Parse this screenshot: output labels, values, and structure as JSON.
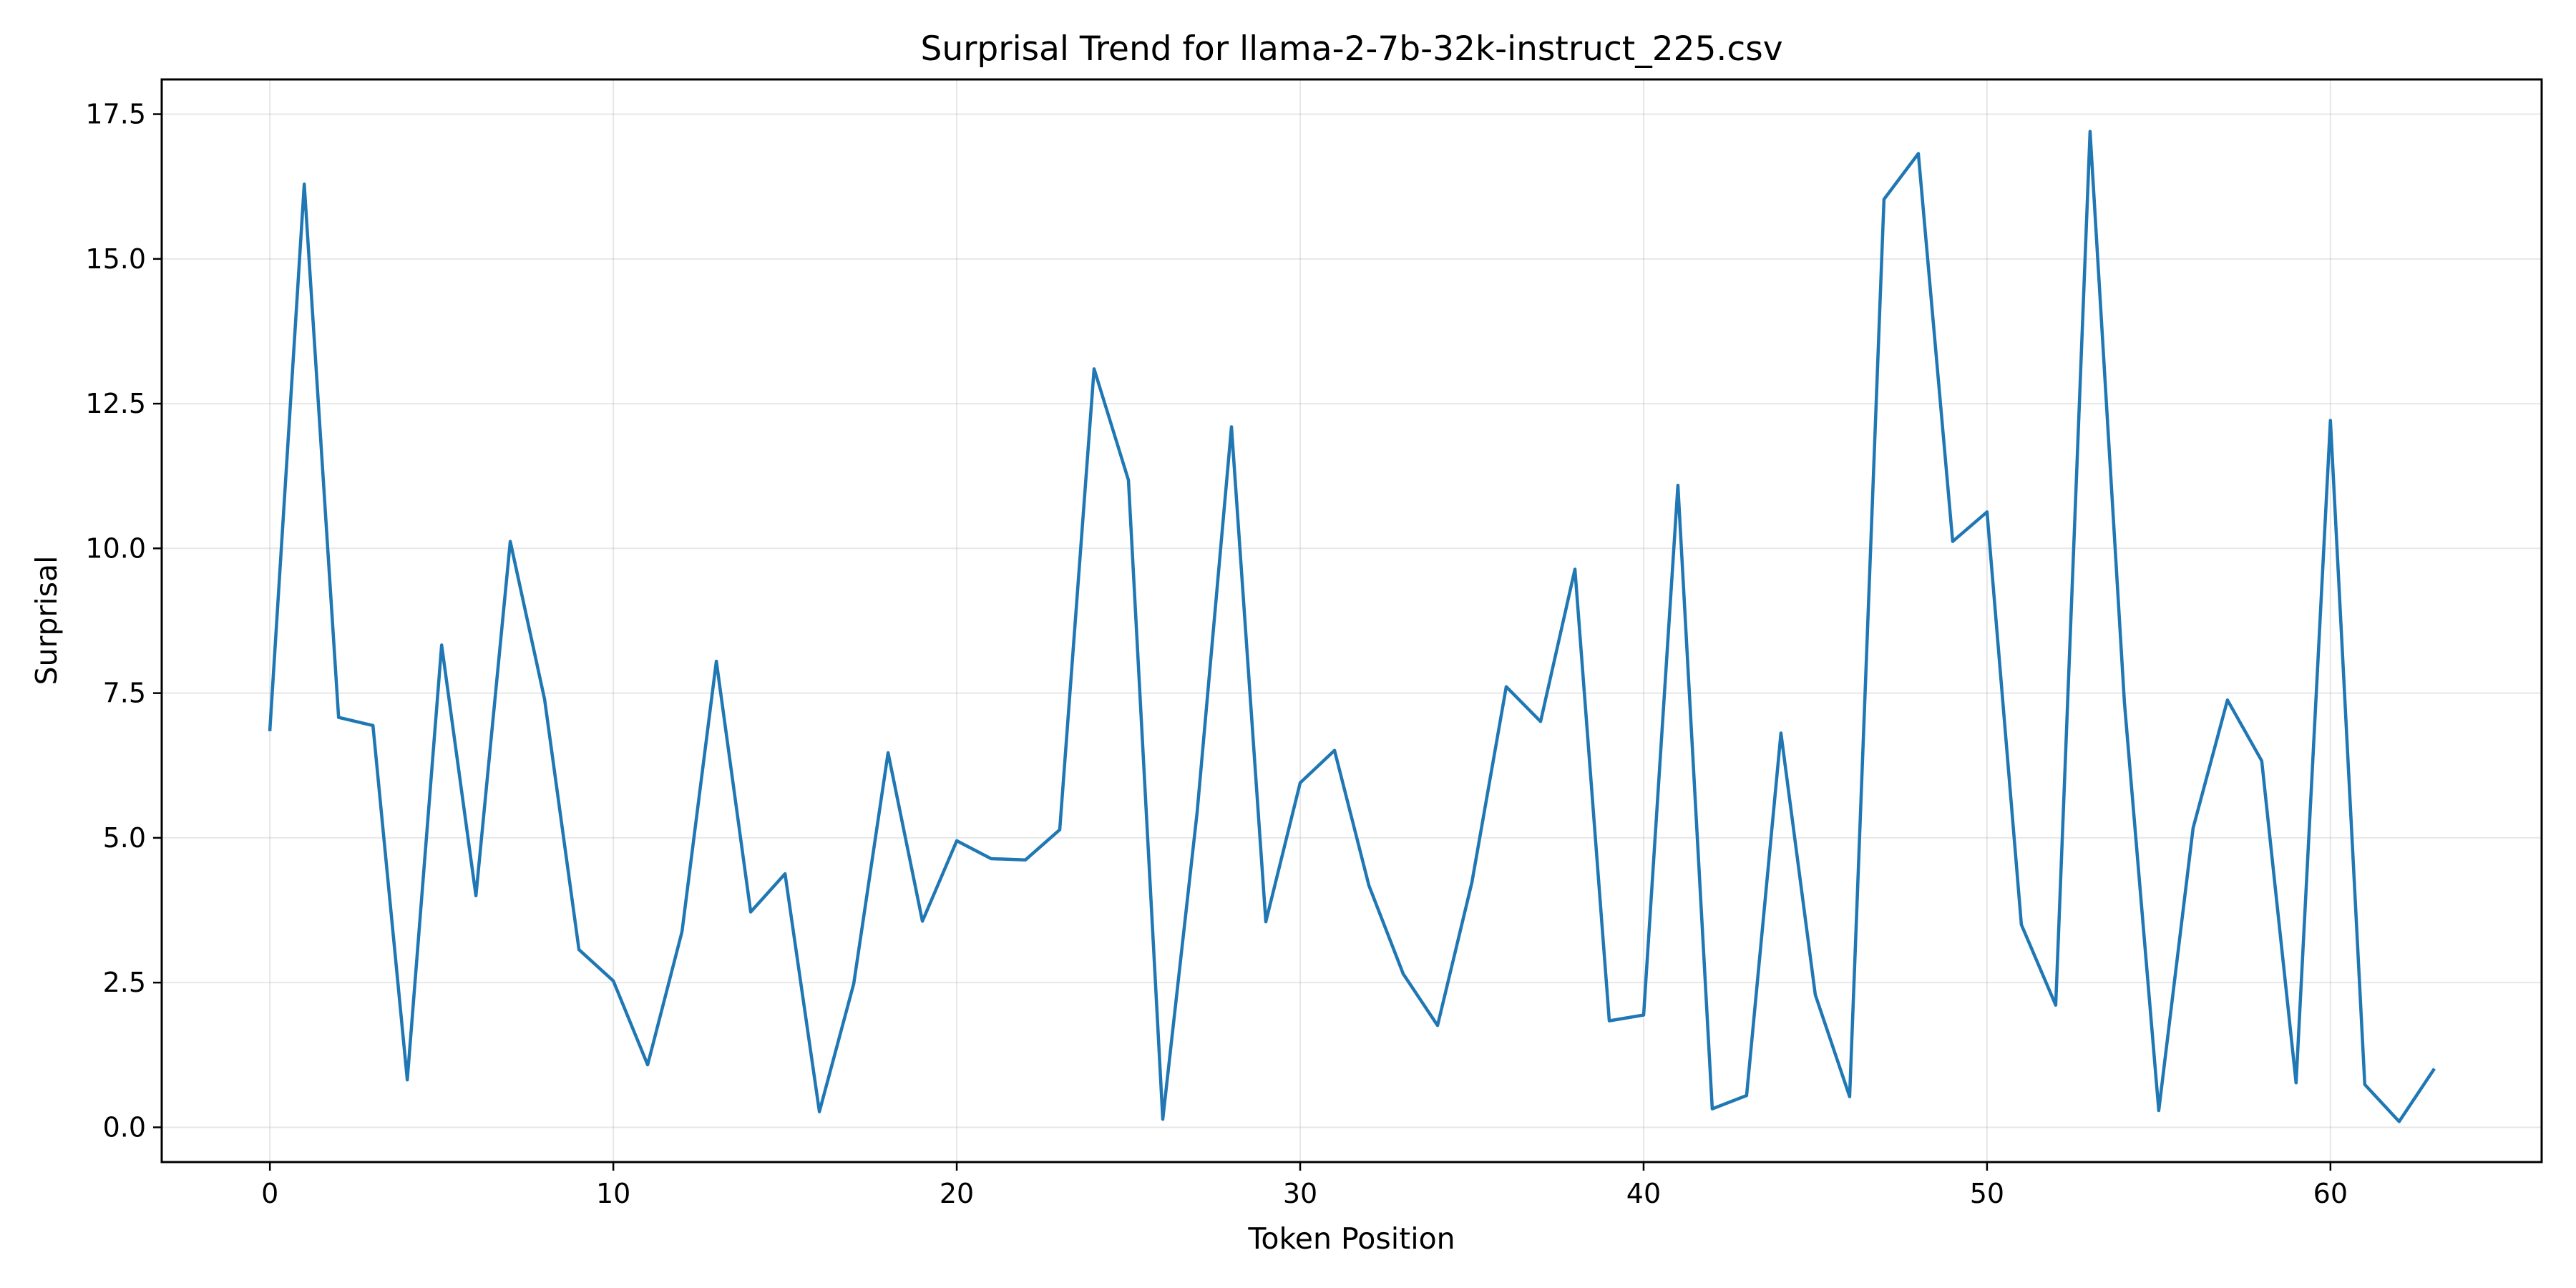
{
  "chart_data": {
    "type": "line",
    "title": "Surprisal Trend for llama-2-7b-32k-instruct_225.csv",
    "xlabel": "Token Position",
    "ylabel": "Surprisal",
    "xlim": [
      -3.15,
      66.15
    ],
    "ylim": [
      -0.6,
      18.1
    ],
    "xticks": [
      0,
      10,
      20,
      30,
      40,
      50,
      60
    ],
    "xtick_labels": [
      "0",
      "10",
      "20",
      "30",
      "40",
      "50",
      "60"
    ],
    "yticks": [
      0,
      2.5,
      5,
      7.5,
      10,
      12.5,
      15,
      17.5
    ],
    "ytick_labels": [
      "0.0",
      "2.5",
      "5.0",
      "7.5",
      "10.0",
      "12.5",
      "15.0",
      "17.5"
    ],
    "grid": true,
    "series": [
      {
        "color": "#1f77b4",
        "x": [
          0,
          1,
          2,
          3,
          4,
          5,
          6,
          7,
          8,
          9,
          10,
          11,
          12,
          13,
          14,
          15,
          16,
          17,
          18,
          19,
          20,
          21,
          22,
          23,
          24,
          25,
          26,
          27,
          28,
          29,
          30,
          31,
          32,
          33,
          34,
          35,
          36,
          37,
          38,
          39,
          40,
          41,
          42,
          43,
          44,
          45,
          46,
          47,
          48,
          49,
          50,
          51,
          52,
          53,
          54,
          55,
          56,
          57,
          58,
          59,
          60,
          61,
          62,
          63
        ],
        "values": [
          6.87,
          16.29,
          7.08,
          6.94,
          0.82,
          8.33,
          4.0,
          10.12,
          7.39,
          3.07,
          2.53,
          1.08,
          3.38,
          8.05,
          3.72,
          4.38,
          0.27,
          2.48,
          6.47,
          3.56,
          4.95,
          4.64,
          4.62,
          5.14,
          13.1,
          11.18,
          0.14,
          5.44,
          12.1,
          3.55,
          5.95,
          6.51,
          4.18,
          2.65,
          1.76,
          4.23,
          7.61,
          7.01,
          9.64,
          1.84,
          1.94,
          11.09,
          0.32,
          0.55,
          6.81,
          2.29,
          0.53,
          16.03,
          16.82,
          10.12,
          10.63,
          3.5,
          2.11,
          17.2,
          7.34,
          0.29,
          5.17,
          7.38,
          6.33,
          0.77,
          12.21,
          0.74,
          0.1,
          0.99
        ]
      }
    ]
  }
}
